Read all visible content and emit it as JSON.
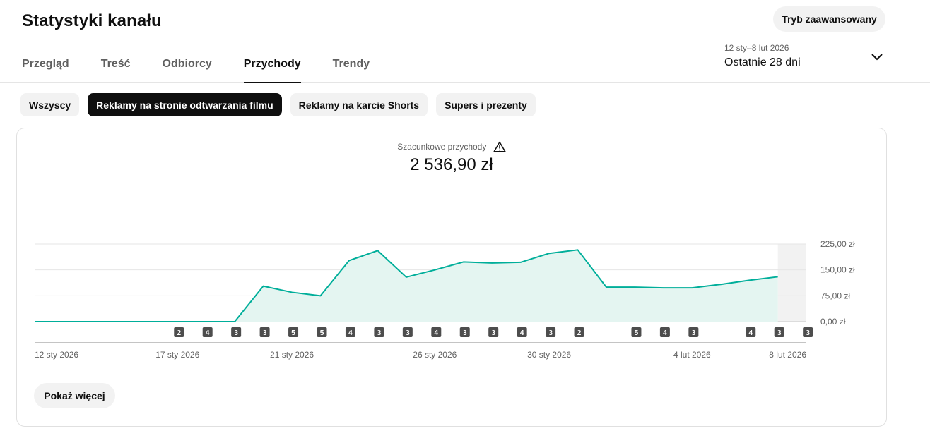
{
  "header": {
    "title": "Statystyki kanału",
    "advanced_mode_label": "Tryb zaawansowany",
    "tabs": [
      {
        "label": "Przegląd",
        "active": false
      },
      {
        "label": "Treść",
        "active": false
      },
      {
        "label": "Odbiorcy",
        "active": false
      },
      {
        "label": "Przychody",
        "active": true
      },
      {
        "label": "Trendy",
        "active": false
      }
    ],
    "date_range": {
      "dates": "12 sty–8 lut 2026",
      "label": "Ostatnie 28 dni",
      "icon": "chevron-down-icon"
    }
  },
  "filters": [
    {
      "label": "Wszyscy",
      "active": false
    },
    {
      "label": "Reklamy na stronie odtwarzania filmu",
      "active": true
    },
    {
      "label": "Reklamy na karcie Shorts",
      "active": false
    },
    {
      "label": "Supers i prezenty",
      "active": false
    }
  ],
  "metric": {
    "label": "Szacunkowe przychody",
    "value": "2 536,90 zł",
    "icon": "warning-icon"
  },
  "chart_data": {
    "type": "area",
    "x": [
      "12 sty 2026",
      "13 sty 2026",
      "14 sty 2026",
      "15 sty 2026",
      "16 sty 2026",
      "17 sty 2026",
      "18 sty 2026",
      "19 sty 2026",
      "20 sty 2026",
      "21 sty 2026",
      "22 sty 2026",
      "23 sty 2026",
      "24 sty 2026",
      "25 sty 2026",
      "26 sty 2026",
      "27 sty 2026",
      "28 sty 2026",
      "29 sty 2026",
      "30 sty 2026",
      "31 sty 2026",
      "1 lut 2026",
      "2 lut 2026",
      "3 lut 2026",
      "4 lut 2026",
      "5 lut 2026",
      "6 lut 2026",
      "7 lut 2026",
      "8 lut 2026"
    ],
    "series": [
      {
        "values": [
          0,
          0,
          0,
          0,
          0,
          0,
          0,
          0,
          103,
          85,
          75,
          177,
          206,
          129,
          150,
          173,
          170,
          172,
          198,
          208,
          100,
          100,
          98,
          98,
          108,
          120,
          130,
          null
        ]
      }
    ],
    "x_tick_labels": [
      "12 sty 2026",
      "17 sty 2026",
      "21 sty 2026",
      "26 sty 2026",
      "30 sty 2026",
      "4 lut 2026",
      "8 lut 2026"
    ],
    "y_tick_labels": [
      "225,00 zł",
      "150,00 zł",
      "75,00 zł",
      "0,00 zł"
    ],
    "ylim": [
      0,
      225
    ],
    "grid": true,
    "line_color": "#00ae9a",
    "fill_color": "#e4f5f1",
    "markers": [
      null,
      null,
      null,
      null,
      null,
      2,
      4,
      3,
      3,
      5,
      5,
      4,
      3,
      3,
      4,
      3,
      3,
      4,
      3,
      2,
      null,
      5,
      4,
      3,
      null,
      4,
      3,
      3
    ],
    "shaded_last_day": true
  },
  "show_more_label": "Pokaż więcej"
}
